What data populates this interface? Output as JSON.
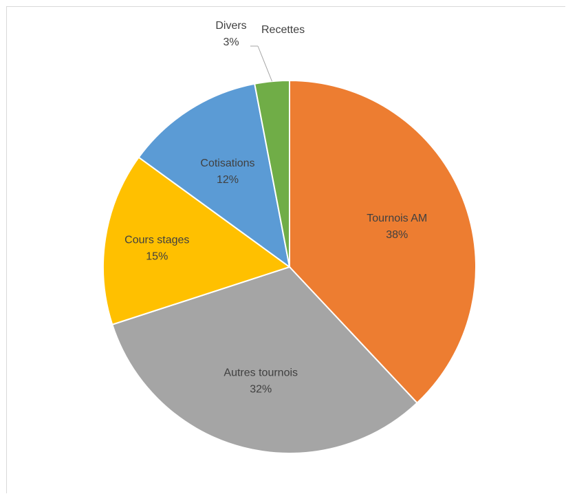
{
  "chart_data": {
    "type": "pie",
    "title": "Recettes",
    "slices": [
      {
        "label": "Tournois AM",
        "value": 38,
        "display": "38%",
        "color": "#ED7D31"
      },
      {
        "label": "Autres tournois",
        "value": 32,
        "display": "32%",
        "color": "#A5A5A5"
      },
      {
        "label": "Cours stages",
        "value": 15,
        "display": "15%",
        "color": "#FFC000"
      },
      {
        "label": "Cotisations",
        "value": 12,
        "display": "12%",
        "color": "#5B9BD5"
      },
      {
        "label": "Divers",
        "value": 3,
        "display": "3%",
        "color": "#70AD47"
      }
    ]
  }
}
